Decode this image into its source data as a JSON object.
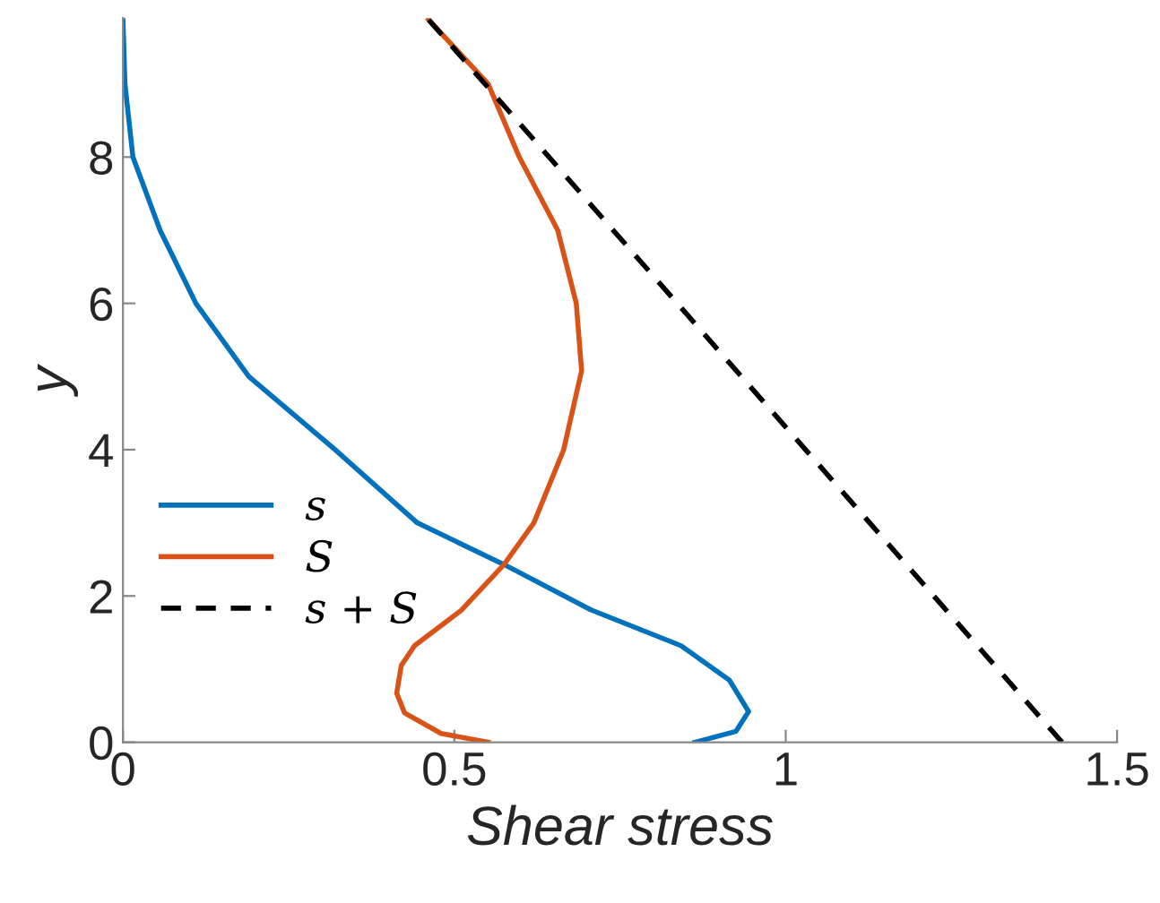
{
  "chart_data": {
    "type": "line",
    "xlabel": "Shear stress",
    "ylabel": "y",
    "xlim": [
      0,
      1.5
    ],
    "ylim": [
      0,
      9.9
    ],
    "xticks": [
      0,
      0.5,
      1,
      1.5
    ],
    "yticks": [
      0,
      2,
      4,
      6,
      8
    ],
    "grid": false,
    "legend": "lower left",
    "series": [
      {
        "name": "s",
        "color": "#0072bd",
        "line_style": "solid",
        "x": [
          0.863,
          0.925,
          0.944,
          0.915,
          0.842,
          0.706,
          0.575,
          0.444,
          0.32,
          0.19,
          0.11,
          0.056,
          0.015,
          0.003,
          0
        ],
        "values": [
          0,
          0.15,
          0.42,
          0.85,
          1.32,
          1.81,
          2.43,
          3.0,
          4.0,
          5.0,
          6.0,
          7.0,
          8.0,
          9.0,
          9.88
        ]
      },
      {
        "name": "S",
        "color": "#d95319",
        "line_style": "solid",
        "x": [
          0.551,
          0.48,
          0.425,
          0.413,
          0.42,
          0.44,
          0.51,
          0.575,
          0.62,
          0.665,
          0.692,
          0.684,
          0.656,
          0.598,
          0.551,
          0.461
        ],
        "values": [
          0,
          0.12,
          0.4,
          0.67,
          1.05,
          1.32,
          1.8,
          2.43,
          3.0,
          4.0,
          5.08,
          6.0,
          7.0,
          8.0,
          9.0,
          9.88
        ]
      },
      {
        "name": "s + S",
        "color": "#000000",
        "line_style": "dashed",
        "x": [
          1.417,
          0.461
        ],
        "values": [
          0,
          9.88
        ]
      }
    ]
  }
}
